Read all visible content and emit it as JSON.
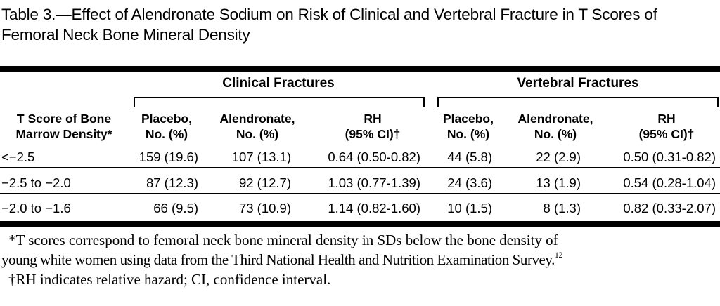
{
  "caption": "Table 3.—Effect of Alendronate Sodium on Risk of Clinical and Vertebral Fracture in T Scores of Femoral Neck Bone Mineral Density",
  "groups": {
    "clinical": "Clinical Fractures",
    "vertebral": "Vertebral Fractures"
  },
  "headers": {
    "tscore_1": "T Score of Bone",
    "tscore_2": "Marrow Density*",
    "placebo_1": "Placebo,",
    "placebo_2": "No. (%)",
    "alendronate_1": "Alendronate,",
    "alendronate_2": "No. (%)",
    "rh_1": "RH",
    "rh_2": "(95% CI)†"
  },
  "rows": [
    {
      "tscore": "<−2.5",
      "c_placebo": "159 (19.6)",
      "c_alendronate": "107 (13.1)",
      "c_rh": "0.64 (0.50-0.82)",
      "v_placebo": "44 (5.8)",
      "v_alendronate": "22 (2.9)",
      "v_rh": "0.50 (0.31-0.82)"
    },
    {
      "tscore": "−2.5 to −2.0",
      "c_placebo": "87 (12.3)",
      "c_alendronate": "92 (12.7)",
      "c_rh": "1.03 (0.77-1.39)",
      "v_placebo": "24 (3.6)",
      "v_alendronate": "13 (1.9)",
      "v_rh": "0.54 (0.28-1.04)"
    },
    {
      "tscore": "−2.0 to −1.6",
      "c_placebo": "66 (9.5)",
      "c_alendronate": "73 (10.9)",
      "c_rh": "1.14 (0.82-1.60)",
      "v_placebo": "10 (1.5)",
      "v_alendronate": "8 (1.3)",
      "v_rh": "0.82 (0.33-2.07)"
    }
  ],
  "footnotes": {
    "star_line1": "*T scores correspond to femoral neck bone mineral density in SDs below the bone density of",
    "star_line2": "young white women using data from the Third National Health and Nutrition Examination Survey.",
    "star_ref": "12",
    "dagger": "†RH indicates relative hazard; CI, confidence interval."
  }
}
